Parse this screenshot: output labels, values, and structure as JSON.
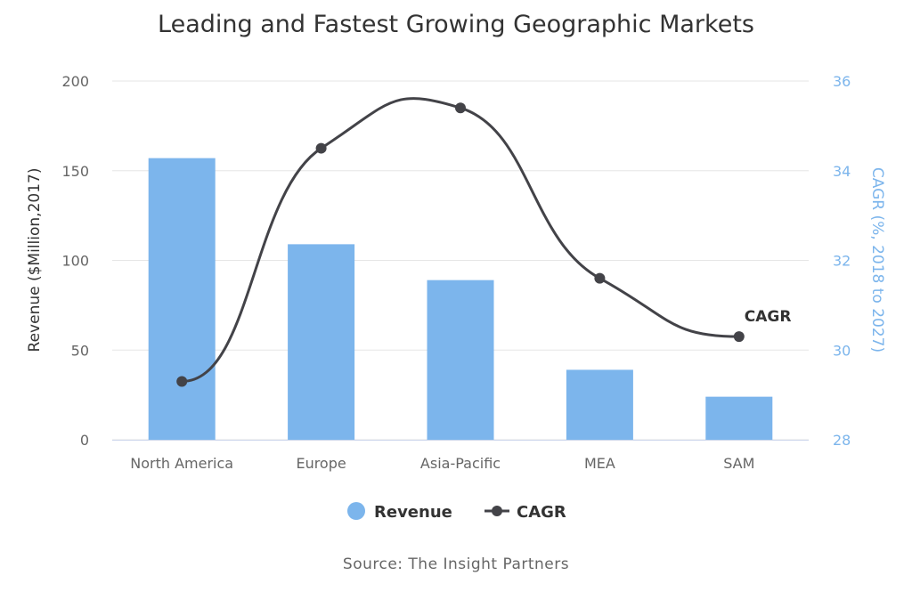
{
  "colors": {
    "revenue": "#7cb5ec",
    "cagr": "#434348",
    "right_axis": "#7cb5ec",
    "grid": "#e6e6e6",
    "text": "#333333",
    "muted": "#666666"
  },
  "chart_data": {
    "type": "bar",
    "title": "Leading and Fastest Growing Geographic Markets",
    "source": "Source: The Insight Partners",
    "categories": [
      "North America",
      "Europe",
      "Asia-Pacific",
      "MEA",
      "SAM"
    ],
    "y_left": {
      "label": "Revenue ($Million,2017)",
      "range": [
        0,
        200
      ],
      "ticks": [
        "0",
        "50",
        "100",
        "150",
        "200"
      ]
    },
    "y_right": {
      "label": "CAGR (%, 2018 to 2027)",
      "range": [
        28,
        36
      ],
      "ticks": [
        "28",
        "30",
        "32",
        "34",
        "36"
      ]
    },
    "series": [
      {
        "name": "Revenue",
        "type": "bar",
        "axis": "left",
        "values": [
          157,
          109,
          89,
          39,
          24
        ]
      },
      {
        "name": "CAGR",
        "type": "spline",
        "axis": "right",
        "values": [
          29.3,
          34.5,
          35.4,
          31.6,
          30.3
        ]
      }
    ],
    "annotation": "CAGR",
    "legend": [
      "Revenue",
      "CAGR"
    ],
    "legend_position": "bottom-center",
    "grid": true
  }
}
